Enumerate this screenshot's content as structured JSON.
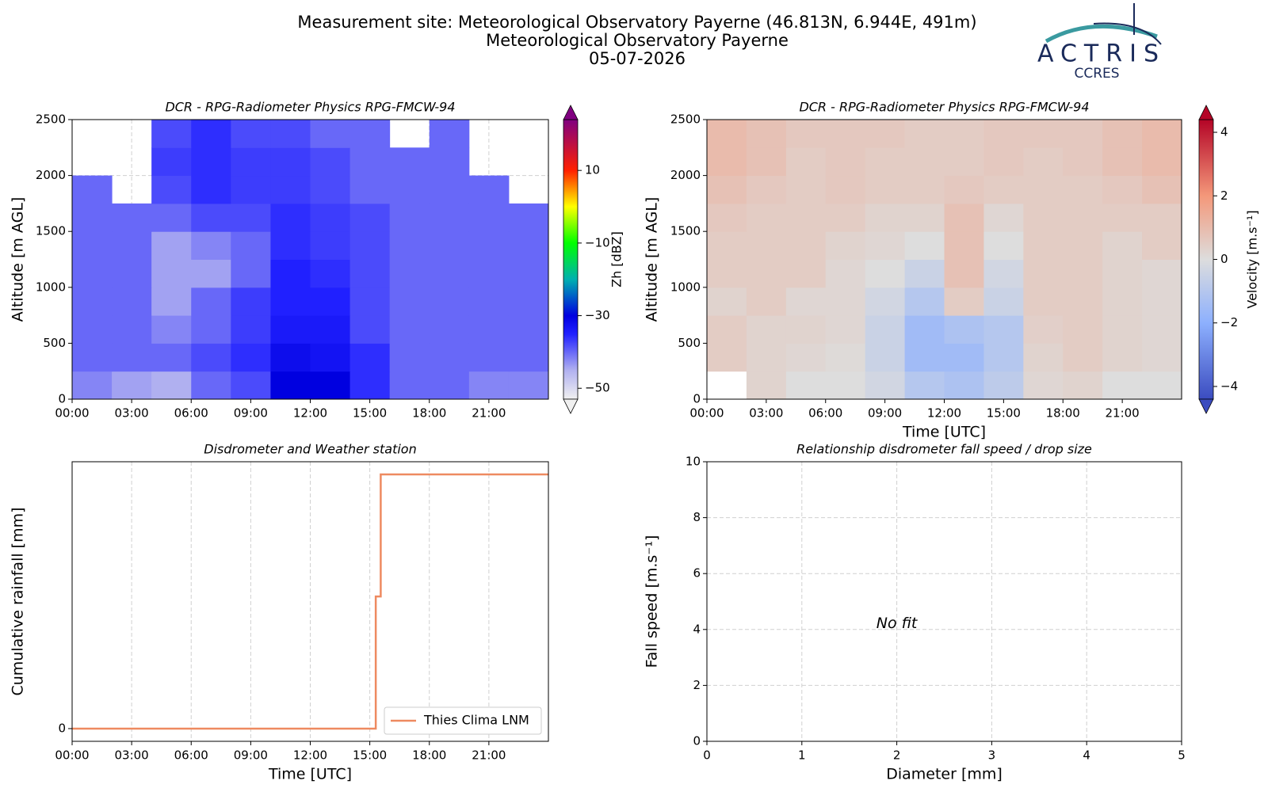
{
  "header": {
    "title": [
      "Measurement site: Meteorological Observatory Payerne (46.813N, 6.944E, 491m)",
      "Meteorological Observatory Payerne",
      "05-07-2026"
    ],
    "logo": {
      "name": "ACTRIS",
      "subtitle": "CCRES"
    }
  },
  "chart_data": [
    {
      "type": "heatmap",
      "title": "DCR - RPG-Radiometer Physics RPG-FMCW-94",
      "ylabel": "Altitude [m AGL]",
      "x": [
        1,
        3,
        5,
        7,
        9,
        11,
        13,
        15,
        17,
        19,
        21,
        23
      ],
      "y": [
        125,
        375,
        625,
        875,
        1125,
        1375,
        1625,
        1875,
        2125,
        2375
      ],
      "values": [
        [
          -42,
          -44,
          -45,
          -40,
          -38,
          -30,
          -30,
          -36,
          -40,
          -40,
          -42,
          -42
        ],
        [
          -40,
          -40,
          -40,
          -38,
          -36,
          -32,
          -33,
          -36,
          -40,
          -40,
          -40,
          -40
        ],
        [
          -40,
          -40,
          -42,
          -40,
          -37,
          -34,
          -34,
          -38,
          -40,
          -40,
          -40,
          -40
        ],
        [
          -40,
          -40,
          -44,
          -40,
          -37,
          -35,
          -35,
          -38,
          -40,
          -40,
          -40,
          -40
        ],
        [
          -40,
          -40,
          -44,
          -44,
          -40,
          -35,
          -36,
          -38,
          -40,
          -40,
          -40,
          -40
        ],
        [
          -40,
          -40,
          -44,
          -42,
          -40,
          -36,
          -37,
          -38,
          -40,
          -40,
          -40,
          -40
        ],
        [
          -40,
          -40,
          -40,
          -38,
          -38,
          -36,
          -37,
          -38,
          -40,
          -40,
          -40,
          -40
        ],
        [
          -40,
          null,
          -38,
          -36,
          -37,
          -37,
          -38,
          -40,
          -40,
          -40,
          -40,
          null
        ],
        [
          null,
          null,
          -37,
          -36,
          -37,
          -37,
          -38,
          -40,
          -40,
          -40,
          null,
          null
        ],
        [
          null,
          null,
          -38,
          -36,
          -38,
          -38,
          -40,
          -40,
          null,
          -40,
          null,
          null
        ]
      ],
      "xlim": [
        0,
        24
      ],
      "xticks": [
        {
          "value": 0,
          "label": "00:00"
        },
        {
          "value": 3,
          "label": "03:00"
        },
        {
          "value": 6,
          "label": "06:00"
        },
        {
          "value": 9,
          "label": "09:00"
        },
        {
          "value": 12,
          "label": "12:00"
        },
        {
          "value": 15,
          "label": "15:00"
        },
        {
          "value": 18,
          "label": "18:00"
        },
        {
          "value": 21,
          "label": "21:00"
        }
      ],
      "ylim": [
        0,
        2500
      ],
      "yticks": [
        0,
        500,
        1000,
        1500,
        2000,
        2500
      ],
      "grid": true,
      "colorbar": {
        "label": "Zh [dBZ]",
        "lim": [
          -53,
          24
        ],
        "ticks": [
          {
            "value": -50,
            "label": "−50"
          },
          {
            "value": -30,
            "label": "−30"
          },
          {
            "value": -10,
            "label": "−10"
          },
          10
        ],
        "colormap": [
          [
            -53,
            "#f0f0f0"
          ],
          [
            -45,
            "#b0b0f0"
          ],
          [
            -35,
            "#2020ff"
          ],
          [
            -30,
            "#0000e0"
          ],
          [
            -20,
            "#00b0b0"
          ],
          [
            -10,
            "#00ff00"
          ],
          [
            0,
            "#ffff00"
          ],
          [
            10,
            "#ff2000"
          ],
          [
            24,
            "#800080"
          ]
        ]
      }
    },
    {
      "type": "heatmap",
      "title": "DCR - RPG-Radiometer Physics RPG-FMCW-94",
      "ylabel": "Altitude [m AGL]",
      "xlabel": "Time [UTC]",
      "x": [
        1,
        3,
        5,
        7,
        9,
        11,
        13,
        15,
        17,
        19,
        21,
        23
      ],
      "y": [
        125,
        375,
        625,
        875,
        1125,
        1375,
        1625,
        1875,
        2125,
        2375
      ],
      "values": [
        [
          null,
          0.3,
          0,
          0,
          -0.3,
          -1,
          -1.2,
          -0.8,
          0.2,
          0.3,
          0,
          0
        ],
        [
          0.5,
          0.3,
          0.2,
          0.1,
          -0.5,
          -1.5,
          -1.5,
          -1,
          0.3,
          0.5,
          0.3,
          0.2
        ],
        [
          0.5,
          0.3,
          0.3,
          0.2,
          -0.5,
          -1.5,
          -1.2,
          -1,
          0.4,
          0.5,
          0.3,
          0.2
        ],
        [
          0.3,
          0.5,
          0.2,
          0.2,
          -0.3,
          -1,
          0.5,
          -0.5,
          0.5,
          0.5,
          0.3,
          0.2
        ],
        [
          0.5,
          0.5,
          0.5,
          0.2,
          0,
          -0.5,
          0.8,
          -0.3,
          0.5,
          0.5,
          0.3,
          0.2
        ],
        [
          0.5,
          0.5,
          0.5,
          0.3,
          0.2,
          0,
          0.8,
          0,
          0.5,
          0.5,
          0.3,
          0.5
        ],
        [
          0.6,
          0.5,
          0.5,
          0.5,
          0.3,
          0.3,
          0.8,
          0.2,
          0.5,
          0.5,
          0.5,
          0.5
        ],
        [
          0.8,
          0.6,
          0.5,
          0.6,
          0.5,
          0.5,
          0.6,
          0.5,
          0.5,
          0.5,
          0.6,
          0.8
        ],
        [
          1,
          0.8,
          0.5,
          0.6,
          0.5,
          0.5,
          0.5,
          0.6,
          0.5,
          0.6,
          0.8,
          1
        ],
        [
          1,
          0.8,
          0.6,
          0.6,
          0.6,
          0.5,
          0.5,
          0.6,
          0.6,
          0.6,
          0.8,
          1
        ]
      ],
      "xlim": [
        0,
        24
      ],
      "xticks": [
        {
          "value": 0,
          "label": "00:00"
        },
        {
          "value": 3,
          "label": "03:00"
        },
        {
          "value": 6,
          "label": "06:00"
        },
        {
          "value": 9,
          "label": "09:00"
        },
        {
          "value": 12,
          "label": "12:00"
        },
        {
          "value": 15,
          "label": "15:00"
        },
        {
          "value": 18,
          "label": "18:00"
        },
        {
          "value": 21,
          "label": "21:00"
        }
      ],
      "ylim": [
        0,
        2500
      ],
      "yticks": [
        0,
        500,
        1000,
        1500,
        2000,
        2500
      ],
      "grid": true,
      "colorbar": {
        "label": "Velocity [m.s⁻¹]",
        "lim": [
          -4.4,
          4.4
        ],
        "ticks": [
          {
            "value": -4,
            "label": "−4"
          },
          {
            "value": -2,
            "label": "−2"
          },
          0,
          2,
          4
        ],
        "colormap": [
          [
            -4.4,
            "#3b4cc0"
          ],
          [
            -2,
            "#8db0fe"
          ],
          [
            0,
            "#dddddd"
          ],
          [
            2,
            "#f4987a"
          ],
          [
            4.4,
            "#b40426"
          ]
        ]
      }
    },
    {
      "type": "line",
      "title": "Disdrometer and Weather station",
      "ylabel": "Cumulative rainfall [mm]",
      "xlabel": "Time [UTC]",
      "x": [
        0,
        15.3,
        15.3,
        15.55,
        15.55,
        24
      ],
      "series": [
        {
          "name": "Thies Clima LNM",
          "color": "#ee8a60",
          "values": [
            0,
            0,
            0.52,
            0.52,
            1,
            1
          ]
        }
      ],
      "xlim": [
        0,
        24
      ],
      "xticks": [
        {
          "value": 0,
          "label": "00:00"
        },
        {
          "value": 3,
          "label": "03:00"
        },
        {
          "value": 6,
          "label": "06:00"
        },
        {
          "value": 9,
          "label": "09:00"
        },
        {
          "value": 12,
          "label": "12:00"
        },
        {
          "value": 15,
          "label": "15:00"
        },
        {
          "value": 18,
          "label": "18:00"
        },
        {
          "value": 21,
          "label": "21:00"
        }
      ],
      "ylim": [
        -0.05,
        1.05
      ],
      "yticks": [
        0
      ],
      "grid": "x",
      "legend": "lower right"
    },
    {
      "type": "scatter",
      "title": "Relationship disdrometer fall speed / drop size",
      "ylabel": "Fall speed [m.s⁻¹]",
      "xlabel": "Diameter [mm]",
      "annotation": "No fit",
      "xlim": [
        0,
        5
      ],
      "xticks": [
        0,
        1,
        2,
        3,
        4,
        5
      ],
      "ylim": [
        0,
        10
      ],
      "yticks": [
        0,
        2,
        4,
        6,
        8,
        10
      ],
      "grid": true
    }
  ]
}
